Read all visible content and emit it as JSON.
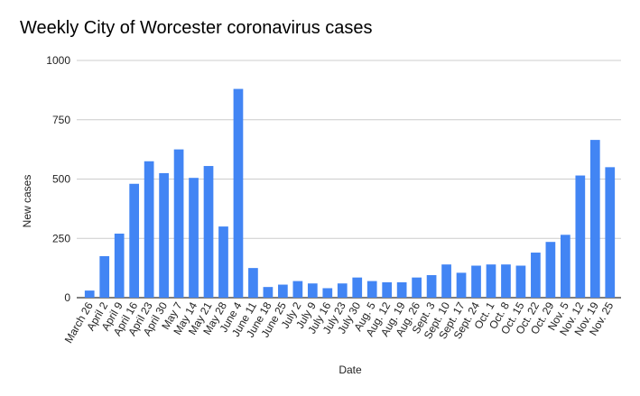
{
  "chart_data": {
    "type": "bar",
    "title": "Weekly City of Worcester coronavirus cases",
    "xlabel": "Date",
    "ylabel": "New cases",
    "ylim": [
      0,
      1000
    ],
    "yticks": [
      0,
      250,
      500,
      750,
      1000
    ],
    "grid": true,
    "legend": "none",
    "bar_color": "#4285f4",
    "categories": [
      "March 26",
      "April 2",
      "April 9",
      "April 16",
      "April 23",
      "April 30",
      "May 7",
      "May 14",
      "May 21",
      "May 28",
      "June 4",
      "June 11",
      "June 18",
      "June 25",
      "July 2",
      "July 9",
      "July 16",
      "July 23",
      "July 30",
      "Aug. 5",
      "Aug. 12",
      "Aug. 19",
      "Aug. 26",
      "Sept. 3",
      "Sept. 10",
      "Sept. 17",
      "Sept. 24",
      "Oct. 1",
      "Oct. 8",
      "Oct. 15",
      "Oct. 22",
      "Oct. 29",
      "Nov. 5",
      "Nov. 12",
      "Nov. 19",
      "Nov. 25"
    ],
    "values": [
      30,
      175,
      270,
      480,
      575,
      525,
      625,
      505,
      555,
      300,
      880,
      125,
      45,
      55,
      70,
      60,
      40,
      60,
      85,
      70,
      65,
      65,
      85,
      95,
      140,
      105,
      135,
      140,
      140,
      135,
      190,
      235,
      265,
      515,
      665,
      550
    ]
  }
}
